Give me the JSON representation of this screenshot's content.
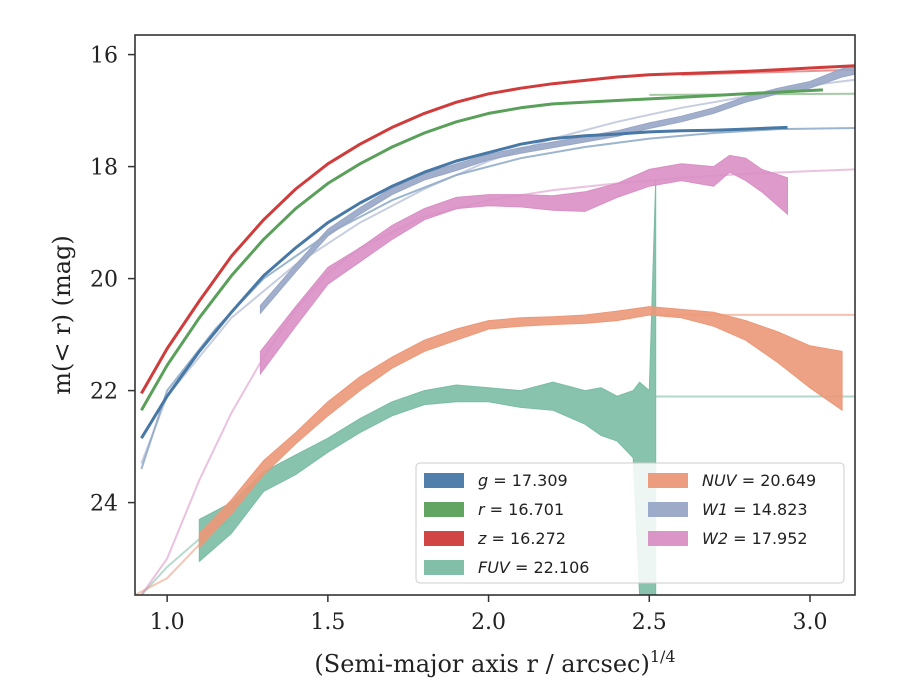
{
  "chart_data": {
    "type": "line",
    "title": "",
    "xlabel": "(Semi-major axis r / arcsec)",
    "xlabel_exp": "1/4",
    "ylabel": "m(< r) (mag)",
    "xlim": [
      0.9,
      3.14
    ],
    "ylim": [
      25.65,
      15.65
    ],
    "y_inverted": true,
    "x_ticks": [
      {
        "v": 1.0,
        "label": "1.0"
      },
      {
        "v": 1.5,
        "label": "1.5"
      },
      {
        "v": 2.0,
        "label": "2.0"
      },
      {
        "v": 2.5,
        "label": "2.5"
      },
      {
        "v": 3.0,
        "label": "3.0"
      }
    ],
    "y_ticks": [
      {
        "v": 16,
        "label": "16"
      },
      {
        "v": 18,
        "label": "18"
      },
      {
        "v": 20,
        "label": "20"
      },
      {
        "v": 22,
        "label": "22"
      },
      {
        "v": 24,
        "label": "24"
      }
    ],
    "grid": false,
    "legend_position": "lower-right",
    "legend_columns": 2,
    "series": [
      {
        "name": "g = 17.309",
        "legend": {
          "math": "g",
          "value": "17.309"
        },
        "color": "#4878a6",
        "kind": "line",
        "x": [
          0.92,
          1.0,
          1.1,
          1.2,
          1.3,
          1.4,
          1.5,
          1.6,
          1.7,
          1.8,
          1.9,
          2.0,
          2.1,
          2.2,
          2.3,
          2.4,
          2.5,
          2.6,
          2.7,
          2.8,
          2.93
        ],
        "y": [
          22.85,
          22.1,
          21.3,
          20.6,
          19.95,
          19.45,
          19.0,
          18.65,
          18.35,
          18.1,
          17.9,
          17.75,
          17.6,
          17.5,
          17.45,
          17.42,
          17.38,
          17.36,
          17.35,
          17.33,
          17.3
        ],
        "model": {
          "x": [
            0.92,
            1.0,
            1.15,
            1.3,
            1.5,
            1.7,
            1.9,
            2.1,
            2.3,
            2.5,
            2.7,
            2.9,
            3.14
          ],
          "y": [
            23.4,
            22.0,
            20.9,
            20.0,
            19.2,
            18.6,
            18.15,
            17.85,
            17.65,
            17.5,
            17.4,
            17.33,
            17.31
          ],
          "color": "#4878a6"
        }
      },
      {
        "name": "r = 16.701",
        "legend": {
          "math": "r",
          "value": "16.701"
        },
        "color": "#5aa05a",
        "kind": "line",
        "x": [
          0.92,
          1.0,
          1.1,
          1.2,
          1.3,
          1.4,
          1.5,
          1.6,
          1.7,
          1.8,
          1.9,
          2.0,
          2.1,
          2.2,
          2.4,
          2.6,
          2.8,
          3.04
        ],
        "y": [
          22.35,
          21.55,
          20.7,
          19.95,
          19.3,
          18.75,
          18.3,
          17.95,
          17.65,
          17.4,
          17.2,
          17.05,
          16.95,
          16.88,
          16.82,
          16.76,
          16.7,
          16.63
        ],
        "model": {
          "x": [
            2.5,
            2.8,
            3.14
          ],
          "y": [
            16.72,
            16.71,
            16.7
          ],
          "color": "#5aa05a"
        }
      },
      {
        "name": "z = 16.272",
        "legend": {
          "math": "z",
          "value": "16.272"
        },
        "color": "#d03b3b",
        "kind": "line",
        "x": [
          0.92,
          1.0,
          1.1,
          1.2,
          1.3,
          1.4,
          1.5,
          1.6,
          1.7,
          1.8,
          1.9,
          2.0,
          2.1,
          2.2,
          2.3,
          2.4,
          2.5,
          2.6,
          2.7,
          2.8,
          2.9,
          3.0,
          3.14
        ],
        "y": [
          22.05,
          21.25,
          20.4,
          19.6,
          18.95,
          18.4,
          17.95,
          17.6,
          17.3,
          17.05,
          16.85,
          16.7,
          16.6,
          16.52,
          16.46,
          16.4,
          16.36,
          16.34,
          16.32,
          16.3,
          16.27,
          16.24,
          16.2
        ],
        "model": {
          "x": [
            2.6,
            2.9,
            3.14
          ],
          "y": [
            16.36,
            16.31,
            16.27
          ],
          "color": "#d03b3b"
        }
      },
      {
        "name": "FUV = 22.106",
        "legend": {
          "math": "FUV",
          "value": "22.106"
        },
        "color": "#7bbca4",
        "kind": "band",
        "x": [
          1.1,
          1.2,
          1.3,
          1.4,
          1.5,
          1.6,
          1.7,
          1.8,
          1.9,
          2.0,
          2.1,
          2.2,
          2.3,
          2.35,
          2.4,
          2.45,
          2.47,
          2.5,
          2.52
        ],
        "y_upper": [
          24.3,
          24.0,
          23.45,
          23.15,
          22.85,
          22.5,
          22.2,
          22.0,
          21.9,
          21.95,
          22.0,
          21.85,
          22.0,
          21.95,
          22.1,
          22.0,
          21.85,
          22.0,
          18.25
        ],
        "y_lower": [
          25.05,
          24.55,
          23.8,
          23.5,
          23.1,
          22.75,
          22.45,
          22.25,
          22.2,
          22.2,
          22.3,
          22.35,
          22.6,
          22.8,
          22.9,
          23.2,
          25.65,
          25.65,
          25.65
        ],
        "model": {
          "x": [
            0.92,
            1.0,
            1.1,
            1.2
          ],
          "y": [
            25.65,
            25.15,
            24.65,
            24.3
          ],
          "color": "#7bbca4",
          "flat": {
            "x": [
              2.52,
              3.14
            ],
            "y": 22.106
          }
        }
      },
      {
        "name": "NUV = 20.649",
        "legend": {
          "math": "NUV",
          "value": "20.649"
        },
        "color": "#ec9878",
        "kind": "band",
        "x": [
          1.1,
          1.2,
          1.3,
          1.4,
          1.5,
          1.6,
          1.7,
          1.8,
          1.9,
          2.0,
          2.1,
          2.2,
          2.3,
          2.4,
          2.5,
          2.6,
          2.7,
          2.8,
          2.9,
          3.0,
          3.1
        ],
        "y_upper": [
          24.55,
          23.95,
          23.25,
          22.75,
          22.2,
          21.75,
          21.4,
          21.1,
          20.9,
          20.75,
          20.7,
          20.68,
          20.65,
          20.58,
          20.5,
          20.55,
          20.6,
          20.75,
          20.95,
          21.2,
          21.3
        ],
        "y_lower": [
          24.8,
          24.2,
          23.5,
          22.95,
          22.45,
          22.0,
          21.6,
          21.3,
          21.1,
          20.9,
          20.85,
          20.82,
          20.8,
          20.75,
          20.65,
          20.7,
          20.85,
          21.1,
          21.5,
          21.95,
          22.35
        ],
        "model": {
          "x": [
            0.9,
            1.0,
            1.1,
            1.2
          ],
          "y": [
            25.65,
            25.35,
            24.75,
            24.2
          ],
          "color": "#ec9878",
          "flat": {
            "x": [
              2.5,
              3.14
            ],
            "y": 20.649
          }
        }
      },
      {
        "name": "W1 = 14.823",
        "legend": {
          "math": "W1",
          "value": "14.823"
        },
        "color": "#98a6c6",
        "kind": "band",
        "x": [
          1.29,
          1.4,
          1.5,
          1.6,
          1.7,
          1.8,
          1.9,
          2.0,
          2.1,
          2.2,
          2.3,
          2.4,
          2.5,
          2.6,
          2.7,
          2.8,
          2.9,
          3.0,
          3.1,
          3.14
        ],
        "y_upper": [
          20.48,
          19.75,
          19.12,
          18.73,
          18.38,
          18.12,
          17.95,
          17.78,
          17.66,
          17.56,
          17.46,
          17.36,
          17.22,
          17.1,
          16.95,
          16.75,
          16.6,
          16.48,
          16.25,
          16.2
        ],
        "y_lower": [
          20.62,
          19.88,
          19.24,
          18.85,
          18.5,
          18.24,
          18.07,
          17.88,
          17.76,
          17.66,
          17.56,
          17.46,
          17.32,
          17.2,
          17.05,
          16.85,
          16.7,
          16.6,
          16.4,
          16.35
        ],
        "model": {
          "x": [
            0.92,
            1.0,
            1.2,
            1.4,
            1.6,
            1.8,
            2.0,
            2.2,
            2.4,
            2.6,
            2.8,
            3.0,
            3.14
          ],
          "y": [
            23.3,
            22.1,
            20.7,
            19.75,
            19.0,
            18.4,
            17.9,
            17.5,
            17.2,
            16.95,
            16.75,
            16.55,
            16.45
          ],
          "color": "#98a6c6"
        }
      },
      {
        "name": "W2 = 17.952",
        "legend": {
          "math": "W2",
          "value": "17.952"
        },
        "color": "#d98fc4",
        "kind": "band",
        "x": [
          1.29,
          1.4,
          1.5,
          1.6,
          1.7,
          1.8,
          1.9,
          2.0,
          2.1,
          2.2,
          2.3,
          2.4,
          2.5,
          2.6,
          2.7,
          2.75,
          2.8,
          2.85,
          2.93
        ],
        "y_upper": [
          21.3,
          20.5,
          19.8,
          19.45,
          19.05,
          18.75,
          18.55,
          18.5,
          18.5,
          18.52,
          18.45,
          18.3,
          18.05,
          17.95,
          18.0,
          17.8,
          17.85,
          18.05,
          18.2
        ],
        "y_lower": [
          21.7,
          20.85,
          20.1,
          19.7,
          19.3,
          18.95,
          18.75,
          18.7,
          18.72,
          18.78,
          18.8,
          18.55,
          18.35,
          18.25,
          18.35,
          18.1,
          18.25,
          18.45,
          18.85
        ],
        "model": {
          "x": [
            0.92,
            1.0,
            1.1,
            1.2,
            1.3,
            1.4,
            1.5,
            1.6,
            1.8,
            2.0,
            2.2,
            2.4,
            2.6,
            2.8,
            3.0,
            3.14
          ],
          "y": [
            25.65,
            25.0,
            23.6,
            22.4,
            21.4,
            20.55,
            19.9,
            19.45,
            18.9,
            18.6,
            18.42,
            18.3,
            18.2,
            18.13,
            18.08,
            18.05
          ],
          "color": "#d98fc4"
        }
      }
    ]
  }
}
